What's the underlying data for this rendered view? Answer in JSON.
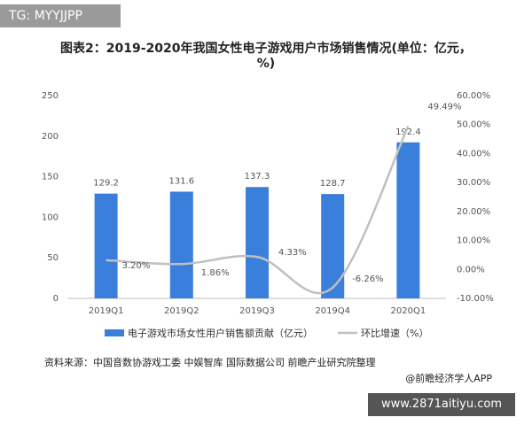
{
  "tag": "TG: MYYJJPP",
  "chart_data": {
    "type": "bar-line",
    "title": "图表2：2019-2020年我国女性电子游戏用户市场销售情况(单位：亿元，%)",
    "categories": [
      "2019Q1",
      "2019Q2",
      "2019Q3",
      "2019Q4",
      "2020Q1"
    ],
    "series": [
      {
        "name": "电子游戏市场女性用户销售额贡献（亿元）",
        "type": "bar",
        "color": "#3a7fdc",
        "values": [
          129.2,
          131.6,
          137.3,
          128.7,
          192.4
        ]
      },
      {
        "name": "环比增速（%）",
        "type": "line",
        "axis": "y2",
        "color": "#c0c0c0",
        "values": [
          3.2,
          1.86,
          4.33,
          -6.26,
          49.49
        ],
        "value_labels": [
          "3.20%",
          "1.86%",
          "4.33%",
          "-6.26%",
          "49.49%"
        ]
      }
    ],
    "ylim": [
      0,
      250
    ],
    "yticks": [
      0,
      50,
      100,
      150,
      200,
      250
    ],
    "y2lim": [
      -10,
      60
    ],
    "y2ticks": [
      {
        "value": -10,
        "label": "-10.00%"
      },
      {
        "value": 0,
        "label": "0.00%"
      },
      {
        "value": 10,
        "label": "10.00%"
      },
      {
        "value": 20,
        "label": "20.00%"
      },
      {
        "value": 30,
        "label": "30.00%"
      },
      {
        "value": 40,
        "label": "40.00%"
      },
      {
        "value": 50,
        "label": "50.00%"
      },
      {
        "value": 60,
        "label": "60.00%"
      }
    ],
    "grid": false,
    "legend": "bottom"
  },
  "source": "资料来源：中国音数协游戏工委 中娱智库 国际数据公司 前瞻产业研究院整理",
  "credit": "@前瞻经济学人APP",
  "watermark": "www.2871aitiyu.com"
}
